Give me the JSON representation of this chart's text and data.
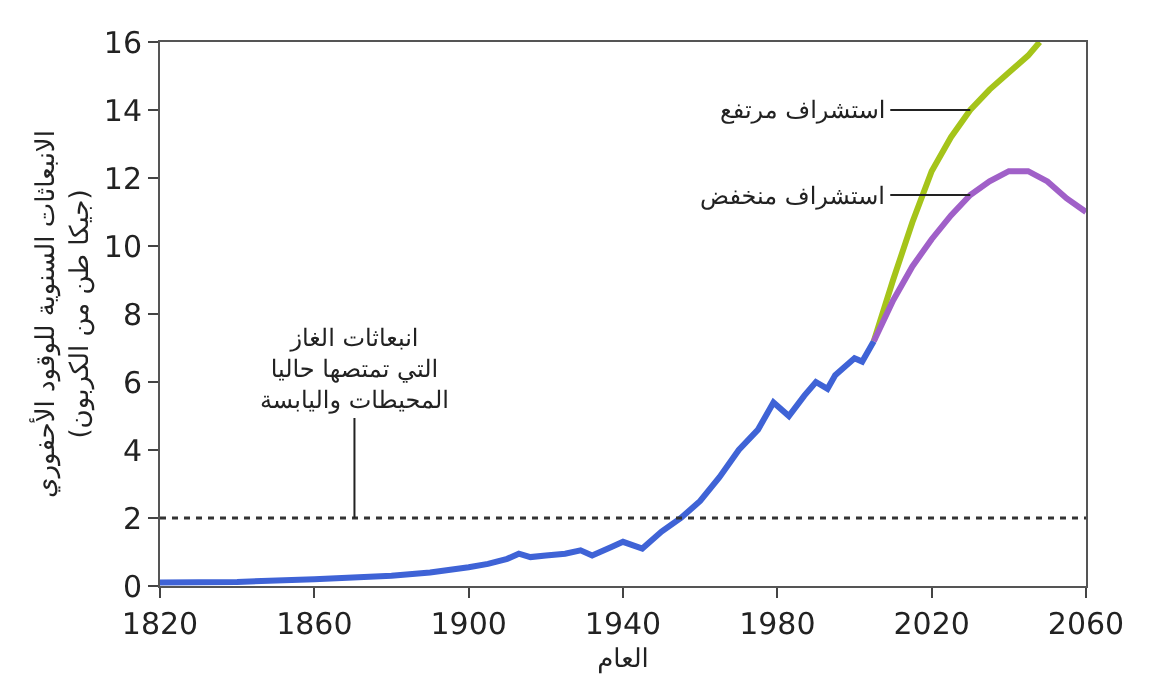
{
  "chart_data": {
    "type": "line",
    "xlabel": "العام",
    "ylabel": "الانبعاثات السنوية للوقود الأحفوري\n(جيكا طن من الكربون)",
    "xlim": [
      1820,
      2060
    ],
    "xticks": [
      1820,
      1860,
      1900,
      1940,
      1980,
      2020,
      2060
    ],
    "ylim": [
      0,
      16
    ],
    "yticks": [
      0,
      2,
      4,
      6,
      8,
      10,
      12,
      14,
      16
    ],
    "marker": "none",
    "line_style": "solid",
    "series": [
      {
        "color": "#3f63d6",
        "x": [
          1820,
          1840,
          1860,
          1870,
          1880,
          1890,
          1900,
          1905,
          1910,
          1913,
          1916,
          1920,
          1925,
          1929,
          1932,
          1937,
          1940,
          1945,
          1950,
          1955,
          1960,
          1965,
          1970,
          1975,
          1979,
          1983,
          1987,
          1990,
          1993,
          1995,
          1998,
          2000,
          2002,
          2005
        ],
        "values": [
          0.1,
          0.12,
          0.2,
          0.25,
          0.3,
          0.4,
          0.55,
          0.65,
          0.8,
          0.95,
          0.85,
          0.9,
          0.95,
          1.05,
          0.9,
          1.15,
          1.3,
          1.1,
          1.6,
          2.0,
          2.5,
          3.2,
          4.0,
          4.6,
          5.4,
          5.0,
          5.6,
          6.0,
          5.8,
          6.2,
          6.5,
          6.7,
          6.6,
          7.2
        ]
      },
      {
        "color": "#a5c41a",
        "x": [
          2005,
          2010,
          2015,
          2020,
          2025,
          2030,
          2035,
          2040,
          2045,
          2048
        ],
        "values": [
          7.2,
          9.0,
          10.7,
          12.2,
          13.2,
          14.0,
          14.6,
          15.1,
          15.6,
          16.0
        ]
      },
      {
        "color": "#a060c8",
        "x": [
          2005,
          2010,
          2015,
          2020,
          2025,
          2030,
          2035,
          2040,
          2045,
          2050,
          2055,
          2060
        ],
        "values": [
          7.2,
          8.4,
          9.4,
          10.2,
          10.9,
          11.5,
          11.9,
          12.2,
          12.2,
          11.9,
          11.4,
          11.0
        ]
      }
    ],
    "ref_lines": [
      {
        "axis": "y",
        "value": 2,
        "label": "انبعاثات الغاز\nالتي تمتصها حاليا\nالمحيطات واليابسة",
        "color": "#333333",
        "line_style": "dotted"
      }
    ],
    "annotations": [
      {
        "text": "استشراف مرتفع",
        "x": 2030,
        "y": 14.0
      },
      {
        "text": "استشراف منخفض",
        "x": 2030,
        "y": 11.5
      }
    ]
  }
}
